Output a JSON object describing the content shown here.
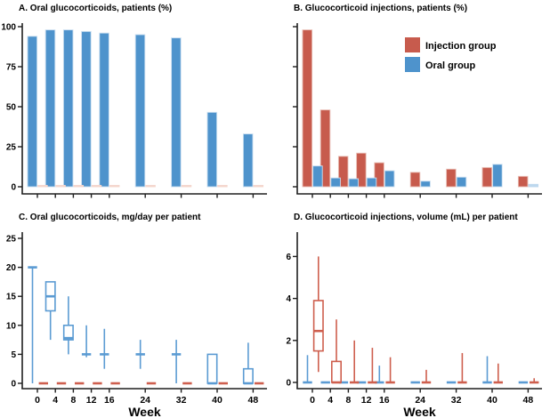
{
  "colors": {
    "injection": "#C75B4D",
    "oral": "#4E93CC",
    "injection_pale": "#F4D6CD",
    "oral_pale": "#BDD8EE",
    "oral_edge": "#C9DEF0",
    "injection_edge": "#E8BDB4",
    "box_oral": "#5B9BD3",
    "box_injection": "#CE5F4E",
    "axis": "#1f1f1f"
  },
  "legend": {
    "items": [
      {
        "label": "Injection group",
        "color": "#C75B4D"
      },
      {
        "label": "Oral group",
        "color": "#4E93CC"
      }
    ]
  },
  "chart_data": [
    {
      "id": "A",
      "type": "bar",
      "title": "A. Oral glucocorticoids, patients (%)",
      "x": [
        0,
        4,
        8,
        12,
        16,
        24,
        32,
        40,
        48
      ],
      "xlabel": "",
      "show_xtick_labels": false,
      "yticks": [
        0,
        25,
        50,
        75,
        100
      ],
      "ylim": [
        0,
        105
      ],
      "show_ytick_labels": true,
      "series": [
        {
          "key": "oral",
          "name": "Oral group",
          "side": "left",
          "color": "#4E93CC",
          "edge": "#C9DEF0",
          "values": [
            94,
            98,
            98,
            97,
            96,
            95,
            93,
            46.5,
            33
          ]
        },
        {
          "key": "injection",
          "name": "Injection group",
          "side": "right",
          "color": "#F4D6CD",
          "edge": "#F4D6CD",
          "values": [
            0.8,
            0.8,
            0.8,
            0.8,
            0.8,
            0.8,
            0.8,
            0.8,
            0.8
          ]
        }
      ]
    },
    {
      "id": "B",
      "type": "bar",
      "title": "B. Glucocorticoid injections, patients (%)",
      "x": [
        0,
        4,
        8,
        12,
        16,
        24,
        32,
        40,
        48
      ],
      "xlabel": "",
      "show_xtick_labels": false,
      "yticks": [
        0,
        25,
        50,
        75,
        100
      ],
      "ylim": [
        0,
        105
      ],
      "show_ytick_labels": false,
      "legend": {
        "items": [
          {
            "label": "Injection group",
            "color": "#C75B4D"
          },
          {
            "label": "Oral group",
            "color": "#4E93CC"
          }
        ]
      },
      "series": [
        {
          "key": "injection",
          "name": "Injection group",
          "side": "left",
          "color": "#C75B4D",
          "edge": "#E8BDB4",
          "values": [
            98,
            48,
            19,
            21,
            15,
            9,
            11,
            12,
            6.5
          ]
        },
        {
          "key": "oral",
          "name": "Oral group",
          "side": "right",
          "color": "#4E93CC",
          "edge": "#C9DEF0",
          "values": [
            13,
            5.5,
            5,
            5.5,
            10,
            3.5,
            6,
            14,
            1.5
          ],
          "point_colors": [
            null,
            null,
            null,
            null,
            null,
            null,
            null,
            null,
            "#BDD8EE"
          ]
        }
      ]
    },
    {
      "id": "C",
      "type": "boxplot",
      "title": "C. Oral glucocorticoids, mg/day per patient",
      "x": [
        0,
        4,
        8,
        12,
        16,
        24,
        32,
        40,
        48
      ],
      "xlabel": "Week",
      "show_xtick_labels": true,
      "yticks": [
        0,
        5,
        10,
        15,
        20,
        25
      ],
      "ylim": [
        0,
        26
      ],
      "show_ytick_labels": true,
      "series": [
        {
          "key": "oral",
          "name": "Oral group",
          "side": "left",
          "color": "#5B9BD3",
          "boxes": [
            {
              "lo": 0,
              "med": 20,
              "hi": 20
            },
            {
              "lo": 7.5,
              "q1": 12.5,
              "med": 15,
              "q3": 17.5,
              "hi": 17.5
            },
            {
              "lo": 5,
              "q1": 7.5,
              "med": 7.8,
              "q3": 10,
              "hi": 15
            },
            {
              "lo": 4.5,
              "med": 5,
              "hi": 10
            },
            {
              "lo": 2.5,
              "med": 5,
              "hi": 9.4
            },
            {
              "lo": 2.5,
              "med": 5,
              "hi": 7.5
            },
            {
              "lo": 0,
              "med": 5,
              "hi": 7.5
            },
            {
              "lo": 0,
              "q1": 0,
              "med": 0,
              "q3": 5,
              "hi": 5
            },
            {
              "lo": 0,
              "q1": 0,
              "med": 0,
              "q3": 2.5,
              "hi": 7
            }
          ]
        },
        {
          "key": "injection",
          "name": "Injection group",
          "side": "right",
          "color": "#CE5F4E",
          "boxes": [
            {
              "med": 0
            },
            {
              "med": 0
            },
            {
              "med": 0
            },
            {
              "med": 0
            },
            {
              "med": 0
            },
            {
              "med": 0
            },
            {
              "med": 0
            },
            {
              "med": 0
            },
            {
              "med": 0
            }
          ]
        }
      ]
    },
    {
      "id": "D",
      "type": "boxplot",
      "title": "D. Glucocorticoid injections, volume (mL) per patient",
      "x": [
        0,
        4,
        8,
        12,
        16,
        24,
        32,
        40,
        48
      ],
      "xlabel": "Week",
      "show_xtick_labels": true,
      "yticks": [
        0,
        2,
        4,
        6
      ],
      "ylim": [
        0,
        7
      ],
      "show_ytick_labels": true,
      "series": [
        {
          "key": "oral",
          "name": "Oral group",
          "side": "left",
          "color": "#5B9BD3",
          "boxes": [
            {
              "lo": 0,
              "med": 0,
              "hi": 1.3
            },
            {
              "med": 0
            },
            {
              "med": 0
            },
            {
              "med": 0
            },
            {
              "lo": 0,
              "med": 0,
              "hi": 0.8
            },
            {
              "med": 0
            },
            {
              "med": 0
            },
            {
              "lo": 0,
              "med": 0,
              "hi": 1.25
            },
            {
              "med": 0
            }
          ]
        },
        {
          "key": "injection",
          "name": "Injection group",
          "side": "right",
          "color": "#CE5F4E",
          "boxes": [
            {
              "lo": 0.5,
              "q1": 1.5,
              "med": 2.45,
              "q3": 3.9,
              "hi": 6
            },
            {
              "lo": 0,
              "q1": 0,
              "med": 0,
              "q3": 1,
              "hi": 3
            },
            {
              "lo": 0,
              "med": 0,
              "hi": 2
            },
            {
              "lo": 0,
              "med": 0,
              "hi": 1.65
            },
            {
              "lo": 0,
              "med": 0,
              "hi": 1.2
            },
            {
              "lo": 0,
              "med": 0,
              "hi": 0.6
            },
            {
              "lo": 0,
              "med": 0,
              "hi": 1.4
            },
            {
              "lo": 0,
              "med": 0,
              "hi": 0.9
            },
            {
              "lo": 0,
              "med": 0,
              "hi": 0.2
            }
          ]
        }
      ]
    }
  ]
}
